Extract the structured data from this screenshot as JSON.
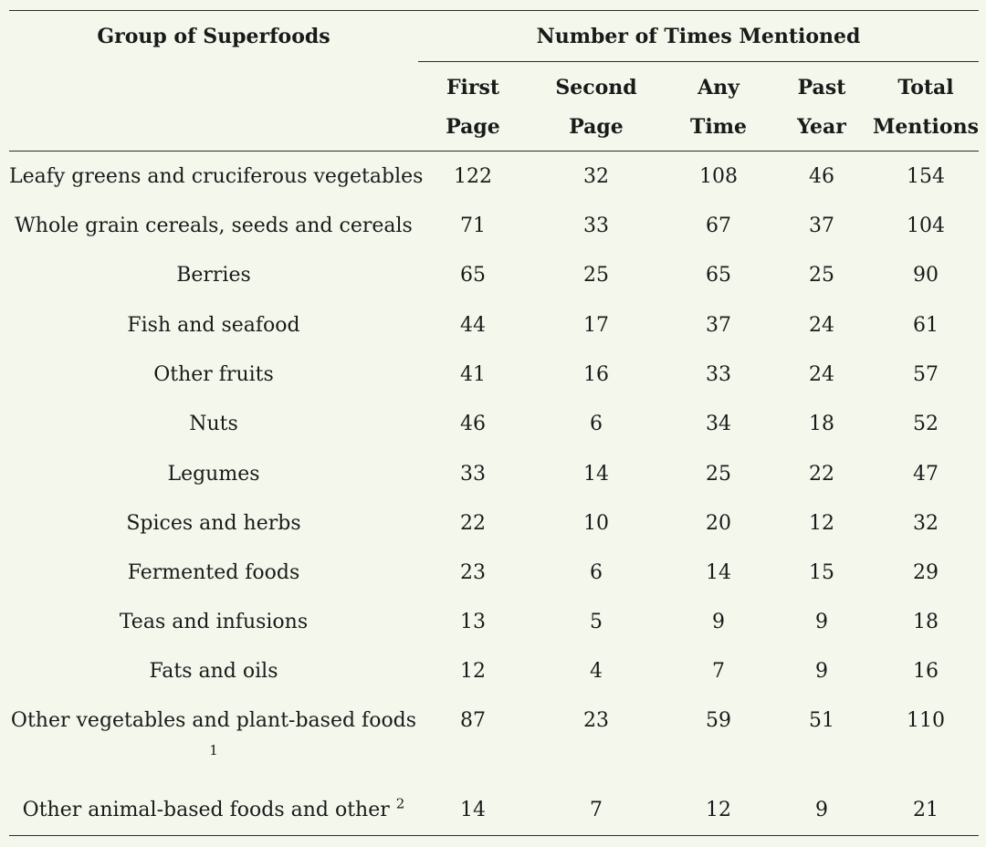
{
  "table": {
    "header": {
      "group_label": "Group of Superfoods",
      "span_label": "Number of Times Mentioned",
      "columns": [
        {
          "line1": "First",
          "line2": "Page"
        },
        {
          "line1": "Second",
          "line2": "Page"
        },
        {
          "line1": "Any",
          "line2": "Time"
        },
        {
          "line1": "Past",
          "line2": "Year"
        },
        {
          "line1": "Total",
          "line2": "Mentions"
        }
      ]
    },
    "rows": [
      {
        "label": "Leafy greens and cruciferous vegetables",
        "values": [
          "122",
          "32",
          "108",
          "46",
          "154"
        ]
      },
      {
        "label": "Whole grain cereals, seeds and cereals",
        "values": [
          "71",
          "33",
          "67",
          "37",
          "104"
        ]
      },
      {
        "label": "Berries",
        "values": [
          "65",
          "25",
          "65",
          "25",
          "90"
        ]
      },
      {
        "label": "Fish and seafood",
        "values": [
          "44",
          "17",
          "37",
          "24",
          "61"
        ]
      },
      {
        "label": "Other fruits",
        "values": [
          "41",
          "16",
          "33",
          "24",
          "57"
        ]
      },
      {
        "label": "Nuts",
        "values": [
          "46",
          "6",
          "34",
          "18",
          "52"
        ]
      },
      {
        "label": "Legumes",
        "values": [
          "33",
          "14",
          "25",
          "22",
          "47"
        ]
      },
      {
        "label": "Spices and herbs",
        "values": [
          "22",
          "10",
          "20",
          "12",
          "32"
        ]
      },
      {
        "label": "Fermented foods",
        "values": [
          "23",
          "6",
          "14",
          "15",
          "29"
        ]
      },
      {
        "label": "Teas and infusions",
        "values": [
          "13",
          "5",
          "9",
          "9",
          "18"
        ]
      },
      {
        "label": "Fats and oils",
        "values": [
          "12",
          "4",
          "7",
          "9",
          "16"
        ]
      },
      {
        "label": "Other vegetables and plant-based foods",
        "footnote": "1",
        "values": [
          "87",
          "23",
          "59",
          "51",
          "110"
        ]
      },
      {
        "label": "Other animal-based foods and other",
        "footnote": "2",
        "values": [
          "14",
          "7",
          "12",
          "9",
          "21"
        ]
      }
    ]
  }
}
